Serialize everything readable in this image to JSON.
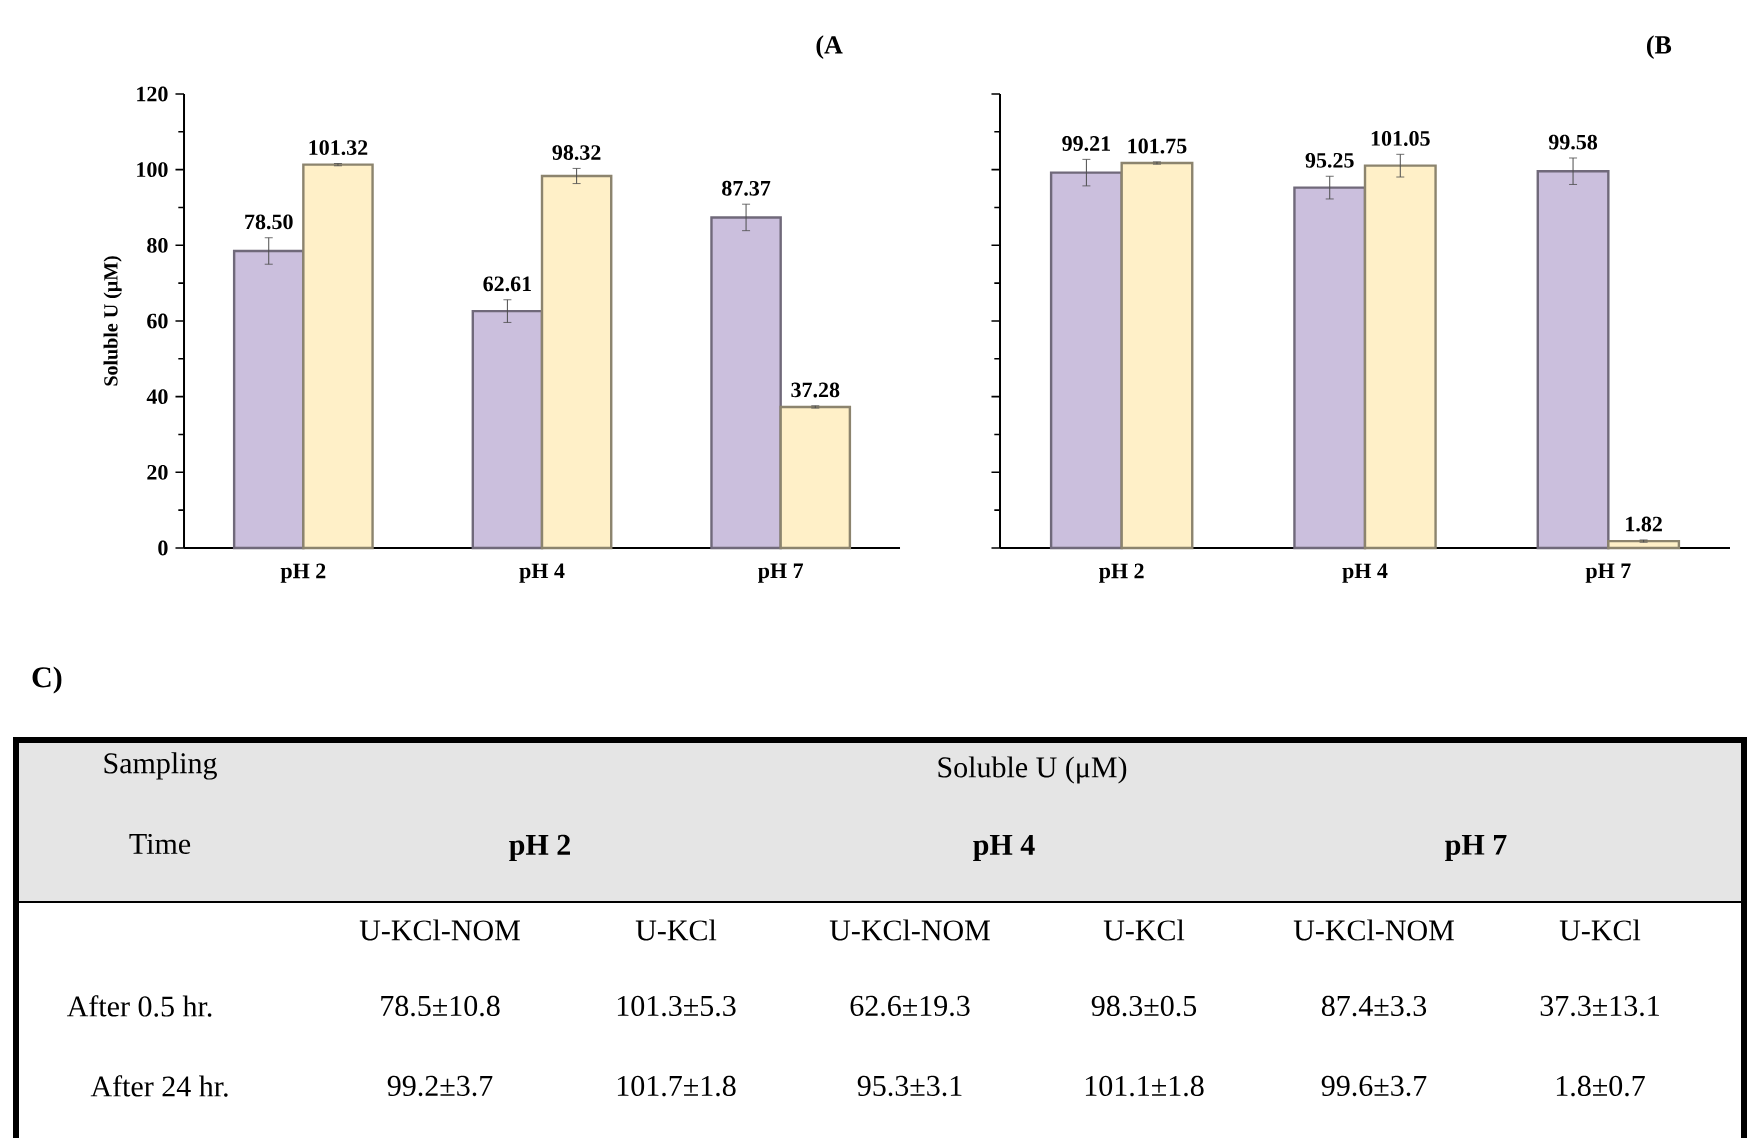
{
  "chart_data": [
    {
      "type": "bar",
      "title": "(A",
      "ylabel": "Soluble U  (μM)",
      "categories": [
        "pH 2",
        "pH 4",
        "pH 7"
      ],
      "ylim": [
        0,
        120
      ],
      "yticks": [
        0,
        20,
        40,
        60,
        80,
        100,
        120
      ],
      "series": [
        {
          "color": "#cbbfdd",
          "values": [
            78.5,
            62.61,
            87.37
          ],
          "errors": [
            3.5,
            3,
            3.5
          ],
          "value_labels": [
            "78.50",
            "62.61",
            "87.37"
          ]
        },
        {
          "color": "#fff0c8",
          "values": [
            101.32,
            98.32,
            37.28
          ],
          "errors": [
            0.3,
            2,
            0.3
          ],
          "value_labels": [
            "101.32",
            "98.32",
            "37.28"
          ]
        }
      ]
    },
    {
      "type": "bar",
      "title": "(B",
      "categories": [
        "pH 2",
        "pH 4",
        "pH 7"
      ],
      "ylim": [
        0,
        120
      ],
      "yticks": [
        0,
        20,
        40,
        60,
        80,
        100,
        120
      ],
      "tick_labels": "x",
      "series": [
        {
          "color": "#cbbfdd",
          "values": [
            99.21,
            95.25,
            99.58
          ],
          "errors": [
            3.5,
            3,
            3.5
          ],
          "value_labels": [
            "99.21",
            "95.25",
            "99.58"
          ]
        },
        {
          "color": "#fff0c8",
          "values": [
            101.75,
            101.05,
            1.82
          ],
          "errors": [
            0.3,
            3,
            0.3
          ],
          "value_labels": [
            "101.75",
            "101.05",
            "1.82"
          ]
        }
      ]
    },
    {
      "type": "other",
      "title": "C)",
      "annotations": [
        "Sampling",
        "Time",
        "Soluble U (μM)",
        "pH 2",
        "pH 4",
        "pH 7",
        "U-KCl-NOM",
        "U-KCl",
        "U-KCl-NOM",
        "U-KCl",
        "U-KCl-NOM",
        "U-KCl",
        "After 0.5 hr.",
        "78.5±10.8",
        "101.3±5.3",
        "62.6±19.3",
        "98.3±0.5",
        "87.4±3.3",
        "37.3±13.1",
        "After 24 hr.",
        "99.2±3.7",
        "101.7±1.8",
        "95.3±3.1",
        "101.1±1.8",
        "99.6±3.7",
        "1.8±0.7"
      ]
    }
  ]
}
